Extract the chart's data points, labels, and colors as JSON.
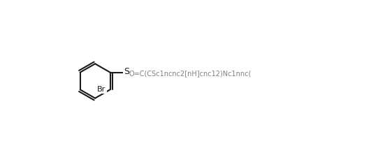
{
  "smiles": "O=C(CSc1ncnc2[nH]cnc12)Nc1nnc(SCc2cccc(Br)c2)s1",
  "title": "",
  "background_color": "#ffffff",
  "figwidth": 5.31,
  "figheight": 2.09,
  "dpi": 100
}
